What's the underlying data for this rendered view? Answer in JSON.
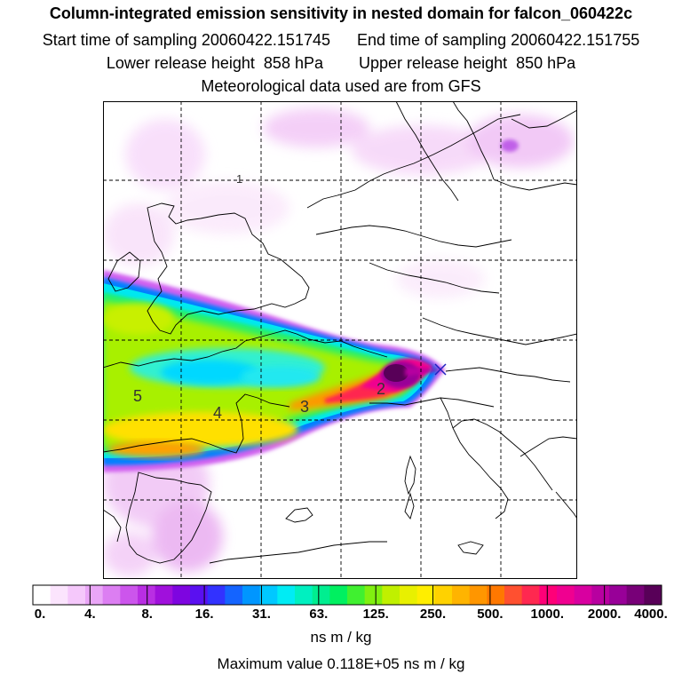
{
  "header": {
    "title": "Column-integrated emission sensitivity in nested domain for falcon_060422c",
    "line2": "Start time of sampling 20060422.151745      End time of sampling 20060422.151755",
    "line3": "Lower release height  858 hPa        Upper release height  850 hPa",
    "line4": "Meteorological data used are from GFS"
  },
  "map": {
    "contour_labels": [
      "1",
      "2",
      "3",
      "4",
      "5"
    ],
    "colors": {
      "coast": "#000000",
      "grid": "#000000",
      "low": "#e8a8f0",
      "mid": "#a0f000",
      "high": "#580058"
    }
  },
  "colorbar": {
    "tick_labels": [
      "0.",
      "4.",
      "8.",
      "16.",
      "31.",
      "63.",
      "125.",
      "250.",
      "500.",
      "1000.",
      "2000.",
      "4000."
    ],
    "colors": [
      "#ffffff",
      "#fbe4fd",
      "#f5c8fb",
      "#eaa6f7",
      "#dc7ef2",
      "#cc55ec",
      "#b92ee3",
      "#a010dc",
      "#7e05e0",
      "#5a10f0",
      "#3232ff",
      "#1464ff",
      "#0096ff",
      "#00c8ff",
      "#00ecf4",
      "#00f0c0",
      "#00ee90",
      "#00f060",
      "#40f030",
      "#80f010",
      "#c0f000",
      "#e8f000",
      "#ffee00",
      "#ffd200",
      "#ffb400",
      "#ff9600",
      "#ff7800",
      "#ff5030",
      "#ff2850",
      "#ff0078",
      "#f00090",
      "#d800a0",
      "#b800a0",
      "#980098",
      "#780078",
      "#580058"
    ]
  },
  "units": "ns m / kg",
  "max_value": "Maximum value  0.118E+05 ns m / kg"
}
